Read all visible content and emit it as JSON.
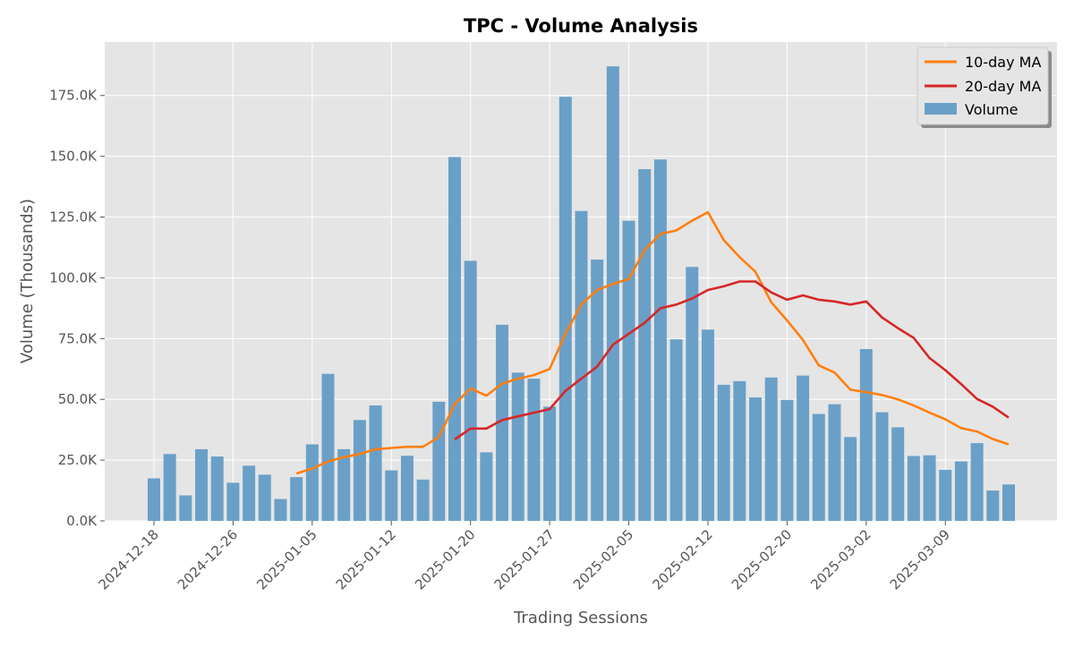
{
  "chart_data": {
    "type": "bar",
    "title": "TPC - Volume Analysis",
    "xlabel": "Trading Sessions",
    "ylabel": "Volume (Thousands)",
    "ylim": [
      0,
      197000
    ],
    "y_ticks": [
      0,
      25000,
      50000,
      75000,
      100000,
      125000,
      150000,
      175000
    ],
    "y_tick_labels": [
      "0.0K",
      "25.0K",
      "50.0K",
      "75.0K",
      "100.0K",
      "125.0K",
      "150.0K",
      "175.0K"
    ],
    "x_ticks": [
      {
        "index": 0,
        "label": "2024-12-18"
      },
      {
        "index": 5,
        "label": "2024-12-26"
      },
      {
        "index": 10,
        "label": "2025-01-05"
      },
      {
        "index": 15,
        "label": "2025-01-12"
      },
      {
        "index": 20,
        "label": "2025-01-20"
      },
      {
        "index": 25,
        "label": "2025-01-27"
      },
      {
        "index": 30,
        "label": "2025-02-05"
      },
      {
        "index": 35,
        "label": "2025-02-12"
      },
      {
        "index": 40,
        "label": "2025-02-20"
      },
      {
        "index": 45,
        "label": "2025-03-02"
      },
      {
        "index": 50,
        "label": "2025-03-09"
      }
    ],
    "grid": true,
    "legend_position": "top-right",
    "series": [
      {
        "name": "Volume",
        "kind": "bar",
        "color": "#6aa0c8",
        "values": [
          17500,
          27500,
          10500,
          29500,
          26500,
          15700,
          22700,
          19000,
          9000,
          18000,
          31500,
          60500,
          29500,
          41500,
          47500,
          20800,
          26800,
          17000,
          49000,
          149700,
          107000,
          28200,
          80700,
          61000,
          58500,
          47000,
          174500,
          127500,
          107500,
          187000,
          123500,
          144700,
          148700,
          74700,
          104500,
          78700,
          56000,
          57500,
          50800,
          59000,
          49800,
          59800,
          44000,
          48000,
          34500,
          70700,
          44700,
          38500,
          26700,
          27000,
          21000,
          24500,
          32000,
          12500,
          15000
        ]
      },
      {
        "name": "10-day MA",
        "kind": "line",
        "color": "#ff7f0e",
        "start_index": 9,
        "values": [
          19500,
          21500,
          24500,
          26200,
          27500,
          29500,
          30000,
          30500,
          30500,
          34500,
          48000,
          54500,
          51500,
          56500,
          58500,
          60000,
          62500,
          77000,
          89000,
          95000,
          97500,
          99500,
          111500,
          118000,
          119500,
          123500,
          127000,
          115500,
          108500,
          102500,
          90000,
          82500,
          74500,
          64000,
          61000,
          54000,
          53000,
          51800,
          50000,
          47500,
          44500,
          41800,
          38200,
          36800,
          33700,
          31500
        ]
      },
      {
        "name": "20-day MA",
        "kind": "line",
        "color": "#d62728",
        "start_index": 19,
        "values": [
          33500,
          38000,
          38000,
          41500,
          43000,
          44500,
          46000,
          53500,
          58500,
          63500,
          72500,
          77000,
          81500,
          87500,
          89000,
          91500,
          95000,
          96500,
          98500,
          98500,
          94000,
          91000,
          92800,
          91000,
          90300,
          89000,
          90300,
          83700,
          79300,
          75300,
          67000,
          62000,
          56300,
          50200,
          47000,
          42500
        ]
      }
    ]
  }
}
